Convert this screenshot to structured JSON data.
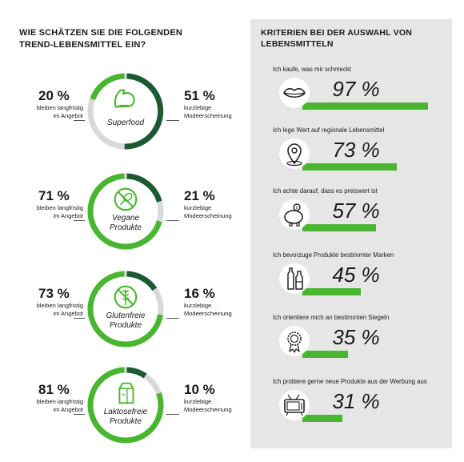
{
  "left": {
    "title_line1": "WIE SCHÄTZEN SIE DIE FOLGENDEN",
    "title_line2": "TREND-LEBENSMITTEL EIN?"
  },
  "colors": {
    "accent": "#49b630",
    "dark": "#1d5a33",
    "muted": "#d9d9d9",
    "panel": "#e6e6e6"
  },
  "chart_data": [
    {
      "type": "pie",
      "categories": [
        "Superfood",
        "Vegane Produkte",
        "Glutenfreie Produkte",
        "Laktosefreie Produkte"
      ],
      "series": [
        {
          "name": "bleiben langfristig im Angebot",
          "values": [
            20,
            71,
            73,
            81
          ]
        },
        {
          "name": "kurzlebige Modeerscheinung",
          "values": [
            51,
            21,
            16,
            10
          ]
        }
      ],
      "items": [
        {
          "label_line1": "Superfood",
          "label_line2": "",
          "icon": "muscle-arm-icon",
          "left_value": 20,
          "left_value_text": "20 %",
          "left_line1": "bleiben langfristig",
          "left_line2": "im Angebot",
          "right_value": 51,
          "right_value_text": "51 %",
          "right_line1": "kurzlebige",
          "right_line2": "Modeerscheinung"
        },
        {
          "label_line1": "Vegane",
          "label_line2": "Produkte",
          "icon": "no-meat-icon",
          "left_value": 71,
          "left_value_text": "71 %",
          "left_line1": "bleiben langfristig",
          "left_line2": "im Angebot",
          "right_value": 21,
          "right_value_text": "21 %",
          "right_line1": "kurzlebige",
          "right_line2": "Modeerscheinung"
        },
        {
          "label_line1": "Glutenfreie",
          "label_line2": "Produkte",
          "icon": "no-wheat-icon",
          "left_value": 73,
          "left_value_text": "73 %",
          "left_line1": "bleiben langfristig",
          "left_line2": "im Angebot",
          "right_value": 16,
          "right_value_text": "16 %",
          "right_line1": "kurzlebige",
          "right_line2": "Modeerscheinung"
        },
        {
          "label_line1": "Laktosefreie",
          "label_line2": "Produkte",
          "icon": "milk-carton-icon",
          "left_value": 81,
          "left_value_text": "81 %",
          "left_line1": "bleiben langfristig",
          "left_line2": "im Angebot",
          "right_value": 10,
          "right_value_text": "10 %",
          "right_line1": "kurzlebige",
          "right_line2": "Modeerscheinung"
        }
      ]
    },
    {
      "type": "bar",
      "title_line1": "KRITERIEN BEI DER AUSWAHL VON",
      "title_line2": "LEBENSMITTELN",
      "categories": [
        "Ich kaufe, was mir schmeckt",
        "Ich lege Wert auf regionale Lebensmittel",
        "Ich achte darauf, dass es preiswert ist",
        "Ich bevorzuge Produkte bestimmter Marken",
        "Ich orientiere mich an bestimmten Siegeln",
        "Ich probiere gerne neue Produkte aus der Werbung aus"
      ],
      "values": [
        97,
        73,
        57,
        45,
        35,
        31
      ],
      "value_texts": [
        "97 %",
        "73 %",
        "57 %",
        "45 %",
        "35 %",
        "31 %"
      ],
      "icons": [
        "lips-icon",
        "map-pin-icon",
        "piggy-bank-icon",
        "bottles-icon",
        "seal-rosette-icon",
        "tv-icon"
      ],
      "ylim": [
        0,
        100
      ]
    }
  ]
}
